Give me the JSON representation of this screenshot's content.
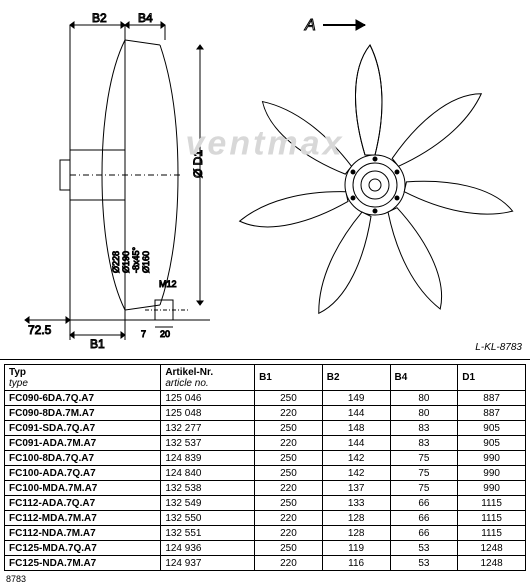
{
  "drawing_id": "L-KL-8783",
  "footer_id": "8783",
  "watermark": "ventmax",
  "dim_labels": {
    "B1": "B1",
    "B2": "B2",
    "B4": "B4",
    "D1": "Ø D1",
    "A": "A",
    "s725": "72.5",
    "d228": "Ø228",
    "d190": "Ø190",
    "bx45": "-8x45°",
    "d160": "Ø160",
    "M12": "M12",
    "s20": "20",
    "s7": "7"
  },
  "columns": [
    {
      "h1": "Typ",
      "h2": "type"
    },
    {
      "h1": "Artikel-Nr.",
      "h2": "article no."
    },
    {
      "h1": "B1",
      "h2": ""
    },
    {
      "h1": "B2",
      "h2": ""
    },
    {
      "h1": "B4",
      "h2": ""
    },
    {
      "h1": "D1",
      "h2": ""
    }
  ],
  "rows": [
    [
      "FC090-6DA.7Q.A7",
      "125 046",
      "250",
      "149",
      "80",
      "887"
    ],
    [
      "FC090-8DA.7M.A7",
      "125 048",
      "220",
      "144",
      "80",
      "887"
    ],
    [
      "FC091-SDA.7Q.A7",
      "132 277",
      "250",
      "148",
      "83",
      "905"
    ],
    [
      "FC091-ADA.7M.A7",
      "132 537",
      "220",
      "144",
      "83",
      "905"
    ],
    [
      "FC100-8DA.7Q.A7",
      "124 839",
      "250",
      "142",
      "75",
      "990"
    ],
    [
      "FC100-ADA.7Q.A7",
      "124 840",
      "250",
      "142",
      "75",
      "990"
    ],
    [
      "FC100-MDA.7M.A7",
      "132 538",
      "220",
      "137",
      "75",
      "990"
    ],
    [
      "FC112-ADA.7Q.A7",
      "132 549",
      "250",
      "133",
      "66",
      "1115"
    ],
    [
      "FC112-MDA.7M.A7",
      "132 550",
      "220",
      "128",
      "66",
      "1115"
    ],
    [
      "FC112-NDA.7M.A7",
      "132 551",
      "220",
      "128",
      "66",
      "1115"
    ],
    [
      "FC125-MDA.7Q.A7",
      "124 936",
      "250",
      "119",
      "53",
      "1248"
    ],
    [
      "FC125-NDA.7M.A7",
      "124 937",
      "220",
      "116",
      "53",
      "1248"
    ]
  ],
  "colors": {
    "stroke": "#000",
    "bg": "#fff",
    "wm": "#d8d8d8"
  }
}
